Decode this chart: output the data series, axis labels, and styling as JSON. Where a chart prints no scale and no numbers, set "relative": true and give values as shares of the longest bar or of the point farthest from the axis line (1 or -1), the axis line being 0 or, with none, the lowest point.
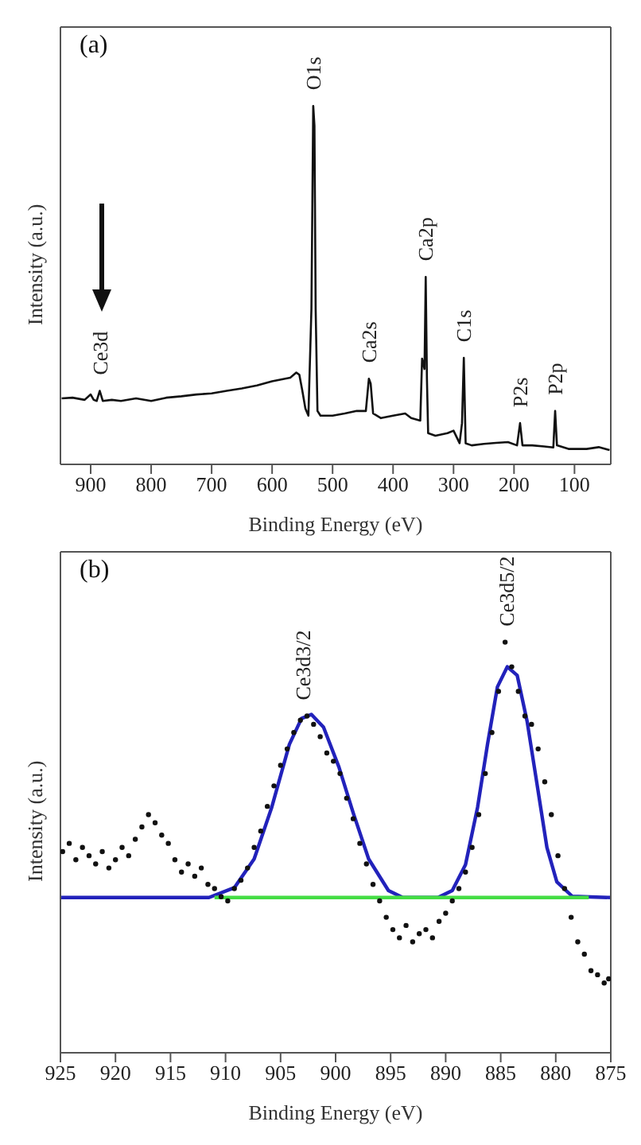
{
  "chart_data": [
    {
      "type": "line",
      "relative": true,
      "xlabel": "Binding Energy (eV)",
      "ylabel": "Intensity (a.u.)",
      "xlim": [
        950,
        40
      ],
      "xticks": [
        900,
        800,
        700,
        600,
        500,
        400,
        300,
        200,
        100
      ],
      "grid": false,
      "annotations": [
        "(a)",
        {
          "text": "O1s",
          "x": 532,
          "y": 1.0
        },
        {
          "text": "Ca2p",
          "x": 346,
          "y": 0.523
        },
        {
          "text": "C1s",
          "x": 283,
          "y": 0.297
        },
        {
          "text": "Ca2s",
          "x": 440,
          "y": 0.239
        },
        {
          "text": "P2s",
          "x": 190,
          "y": 0.115
        },
        {
          "text": "P2p",
          "x": 132,
          "y": 0.149
        },
        {
          "text": "Ce3d",
          "x": 885,
          "y": 0.205
        }
      ],
      "series": [
        {
          "color": "#111111",
          "x": [
            948,
            930,
            910,
            900,
            895,
            890,
            885,
            880,
            865,
            850,
            825,
            800,
            775,
            750,
            725,
            700,
            675,
            650,
            625,
            600,
            585,
            570,
            560,
            555,
            550,
            545,
            540,
            535,
            532,
            530,
            528,
            525,
            520,
            500,
            480,
            460,
            445,
            440,
            437,
            433,
            420,
            400,
            380,
            370,
            355,
            352,
            348,
            346,
            344,
            342,
            330,
            310,
            300,
            290,
            286,
            283,
            280,
            270,
            250,
            230,
            210,
            195,
            190,
            186,
            170,
            150,
            135,
            132,
            129,
            110,
            80,
            60,
            42
          ],
          "values": [
            0.184,
            0.186,
            0.18,
            0.195,
            0.18,
            0.177,
            0.205,
            0.177,
            0.18,
            0.177,
            0.184,
            0.177,
            0.186,
            0.19,
            0.195,
            0.198,
            0.205,
            0.212,
            0.22,
            0.232,
            0.237,
            0.242,
            0.256,
            0.25,
            0.205,
            0.156,
            0.136,
            0.433,
            1.0,
            0.945,
            0.433,
            0.149,
            0.136,
            0.136,
            0.142,
            0.149,
            0.149,
            0.239,
            0.225,
            0.142,
            0.129,
            0.136,
            0.142,
            0.129,
            0.122,
            0.295,
            0.266,
            0.523,
            0.239,
            0.087,
            0.08,
            0.087,
            0.094,
            0.059,
            0.115,
            0.297,
            0.059,
            0.053,
            0.057,
            0.06,
            0.062,
            0.053,
            0.115,
            0.053,
            0.053,
            0.05,
            0.047,
            0.149,
            0.053,
            0.043,
            0.043,
            0.048,
            0.04
          ]
        }
      ]
    },
    {
      "type": "scatter",
      "relative": true,
      "xlabel": "Binding Energy (eV)",
      "ylabel": "Intensity (a.u.)",
      "xlim": [
        925,
        875
      ],
      "xticks": [
        925,
        920,
        915,
        910,
        905,
        900,
        895,
        890,
        885,
        880,
        875
      ],
      "grid": false,
      "annotations": [
        "(b)",
        {
          "text": "Ce3d3/2",
          "x": 903,
          "y": 0.82
        },
        {
          "text": "Ce3d5/2",
          "x": 884.5,
          "y": 1.0
        }
      ],
      "series": [
        {
          "type": "scatter",
          "marker": "circle",
          "color": "#111111",
          "x": [
            924.8,
            924.2,
            923.6,
            923,
            922.4,
            921.8,
            921.2,
            920.6,
            920,
            919.4,
            918.8,
            918.2,
            917.6,
            917,
            916.4,
            915.8,
            915.2,
            914.6,
            914,
            913.4,
            912.8,
            912.2,
            911.6,
            911,
            910.4,
            909.8,
            909.2,
            908.6,
            908,
            907.4,
            906.8,
            906.2,
            905.6,
            905,
            904.4,
            903.8,
            903.2,
            902.6,
            902,
            901.4,
            900.8,
            900.2,
            899.6,
            899,
            898.4,
            897.8,
            897.2,
            896.6,
            896,
            895.4,
            894.8,
            894.2,
            893.6,
            893,
            892.4,
            891.8,
            891.2,
            890.6,
            890,
            889.4,
            888.8,
            888.2,
            887.6,
            887,
            886.4,
            885.8,
            885.2,
            884.6,
            884,
            883.4,
            882.8,
            882.2,
            881.6,
            881,
            880.4,
            879.8,
            879.2,
            878.6,
            878,
            877.4,
            876.8,
            876.2,
            875.6,
            875.2
          ],
          "values": [
            0.49,
            0.51,
            0.47,
            0.5,
            0.48,
            0.46,
            0.49,
            0.45,
            0.47,
            0.5,
            0.48,
            0.52,
            0.55,
            0.58,
            0.56,
            0.53,
            0.51,
            0.47,
            0.44,
            0.46,
            0.43,
            0.45,
            0.41,
            0.4,
            0.38,
            0.37,
            0.4,
            0.42,
            0.45,
            0.5,
            0.54,
            0.6,
            0.65,
            0.7,
            0.74,
            0.78,
            0.81,
            0.82,
            0.8,
            0.77,
            0.73,
            0.71,
            0.68,
            0.62,
            0.57,
            0.51,
            0.46,
            0.41,
            0.37,
            0.33,
            0.3,
            0.28,
            0.31,
            0.27,
            0.29,
            0.3,
            0.28,
            0.32,
            0.34,
            0.37,
            0.4,
            0.44,
            0.5,
            0.58,
            0.68,
            0.78,
            0.88,
            1.0,
            0.94,
            0.88,
            0.82,
            0.8,
            0.74,
            0.66,
            0.58,
            0.48,
            0.4,
            0.33,
            0.27,
            0.24,
            0.2,
            0.19,
            0.17,
            0.18
          ]
        },
        {
          "type": "line",
          "color": "#2222bb",
          "x": [
            925,
            911.5,
            909.2,
            907.4,
            905.8,
            904.2,
            903.1,
            902.2,
            901.1,
            899.7,
            898.4,
            897,
            895.2,
            893.9,
            890.7,
            889.4,
            888.2,
            887.1,
            886.2,
            885.3,
            884.4,
            883.5,
            882.6,
            881.7,
            880.8,
            879.9,
            878.5,
            875
          ],
          "values": [
            0.378,
            0.378,
            0.402,
            0.472,
            0.598,
            0.751,
            0.814,
            0.824,
            0.793,
            0.696,
            0.584,
            0.472,
            0.395,
            0.378,
            0.378,
            0.395,
            0.458,
            0.598,
            0.751,
            0.891,
            0.94,
            0.919,
            0.807,
            0.654,
            0.5,
            0.416,
            0.381,
            0.378
          ]
        },
        {
          "type": "line",
          "color": "#44dd44",
          "x": [
            911,
            877
          ],
          "values": [
            0.378,
            0.378
          ]
        }
      ]
    }
  ]
}
